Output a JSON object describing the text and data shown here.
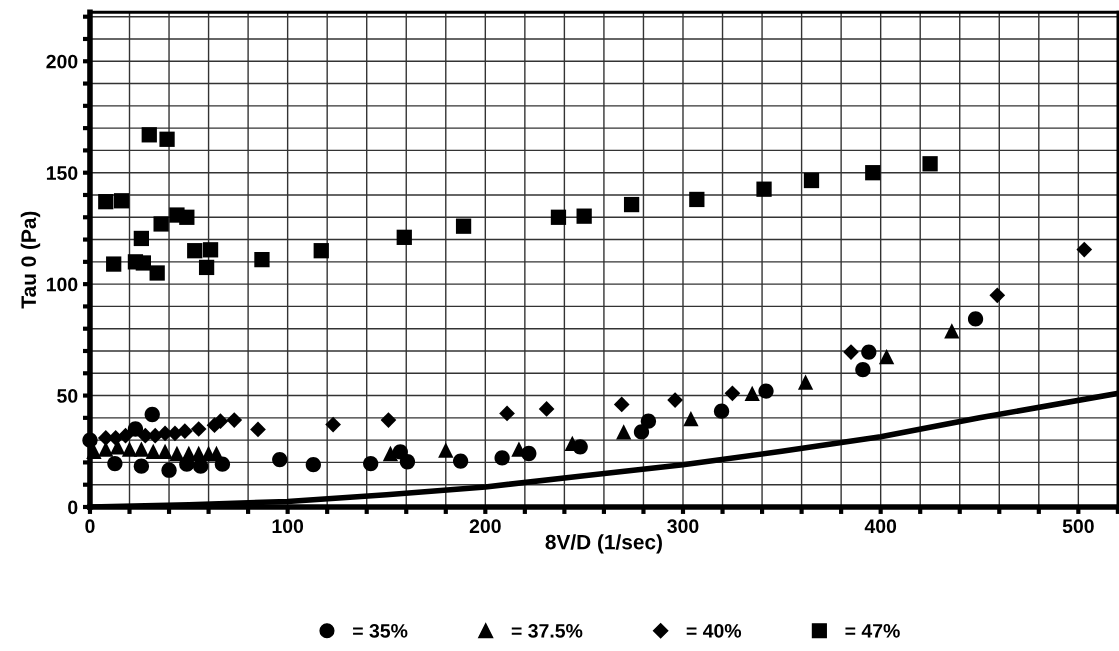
{
  "chart_data": {
    "type": "scatter",
    "xlabel": "8V/D (1/sec)",
    "ylabel": "Tau 0 (Pa)",
    "xlim": [
      0,
      520
    ],
    "ylim": [
      0,
      222
    ],
    "xticks": [
      0,
      {
        "value": 20,
        "label": null
      },
      {
        "value": 40,
        "label": null
      },
      {
        "value": 60,
        "label": null
      },
      {
        "value": 80,
        "label": null
      },
      100,
      {
        "value": 120,
        "label": null
      },
      {
        "value": 140,
        "label": null
      },
      {
        "value": 160,
        "label": null
      },
      {
        "value": 180,
        "label": null
      },
      200,
      {
        "value": 220,
        "label": null
      },
      {
        "value": 240,
        "label": null
      },
      {
        "value": 260,
        "label": null
      },
      {
        "value": 280,
        "label": null
      },
      300,
      {
        "value": 320,
        "label": null
      },
      {
        "value": 340,
        "label": null
      },
      {
        "value": 360,
        "label": null
      },
      {
        "value": 380,
        "label": null
      },
      400,
      {
        "value": 420,
        "label": null
      },
      {
        "value": 440,
        "label": null
      },
      {
        "value": 460,
        "label": null
      },
      {
        "value": 480,
        "label": null
      },
      500,
      {
        "value": 520,
        "label": null
      }
    ],
    "yticks": [
      0,
      {
        "value": 10,
        "label": null
      },
      {
        "value": 20,
        "label": null
      },
      {
        "value": 30,
        "label": null
      },
      {
        "value": 40,
        "label": null
      },
      50,
      {
        "value": 60,
        "label": null
      },
      {
        "value": 70,
        "label": null
      },
      {
        "value": 80,
        "label": null
      },
      {
        "value": 90,
        "label": null
      },
      100,
      {
        "value": 110,
        "label": null
      },
      {
        "value": 120,
        "label": null
      },
      {
        "value": 130,
        "label": null
      },
      {
        "value": 140,
        "label": null
      },
      150,
      {
        "value": 160,
        "label": null
      },
      {
        "value": 170,
        "label": null
      },
      {
        "value": 180,
        "label": null
      },
      {
        "value": 190,
        "label": null
      },
      200,
      {
        "value": 210,
        "label": null
      },
      {
        "value": 220,
        "label": null
      }
    ],
    "grid": true,
    "legend": "bottom",
    "series": [
      {
        "name": "= 35%",
        "color": "#000000",
        "marker": "circle",
        "x": [
          0,
          12.6,
          23,
          26,
          31.5,
          40,
          49,
          56,
          67,
          96,
          113,
          142,
          157,
          160.6,
          187.5,
          208.5,
          222,
          248,
          279,
          282.5,
          319.5,
          342,
          391,
          394,
          448
        ],
        "values": [
          30,
          19.5,
          35,
          18.3,
          41.5,
          16.5,
          19.2,
          18.3,
          19.2,
          21.3,
          19,
          19.5,
          24.7,
          20.3,
          20.6,
          22,
          24,
          27,
          33.7,
          38.5,
          43,
          52,
          61.6,
          69.5,
          84.4
        ]
      },
      {
        "name": "= 37.5%",
        "color": "#000000",
        "marker": "triangle",
        "x": [
          2,
          8,
          14,
          20,
          26,
          32,
          38,
          44,
          50,
          55,
          60,
          64,
          152,
          180,
          217,
          244,
          270,
          304,
          335,
          362,
          403,
          436
        ],
        "values": [
          25,
          26,
          27,
          26,
          26,
          25,
          25,
          24,
          24,
          24,
          24,
          24,
          24,
          25.5,
          26,
          28.5,
          33.7,
          39.7,
          51,
          56,
          67.5,
          79
        ]
      },
      {
        "name": "= 40%",
        "color": "#000000",
        "marker": "diamond",
        "x": [
          8,
          13,
          18,
          28,
          33,
          38,
          43,
          48,
          55,
          63,
          66,
          73,
          85,
          123,
          151,
          211,
          231,
          269,
          296,
          325,
          385,
          459,
          503
        ],
        "values": [
          31,
          31,
          32,
          32,
          32,
          33,
          33,
          34,
          35,
          36.7,
          38.5,
          39,
          34.8,
          37,
          39,
          42,
          44,
          46,
          48,
          51,
          69.5,
          95,
          115.5
        ]
      },
      {
        "name": "= 47%",
        "color": "#000000",
        "marker": "square",
        "x": [
          8,
          12,
          16,
          23,
          26,
          27,
          30,
          34,
          36,
          39,
          44,
          49,
          53,
          59,
          61,
          87,
          117,
          159,
          189,
          237,
          250,
          274,
          307,
          341,
          365,
          396,
          425
        ],
        "values": [
          137,
          109,
          137.4,
          110,
          120.5,
          109.5,
          167,
          105,
          127,
          165,
          131,
          130,
          115,
          107.5,
          115.4,
          111,
          115,
          121,
          126,
          130,
          130.5,
          135.7,
          138,
          142.6,
          146.5,
          150,
          154
        ]
      },
      {
        "type": "line",
        "color": "#000000",
        "marker": "none",
        "x": [
          0,
          50,
          100,
          150,
          200,
          250,
          300,
          350,
          400,
          450,
          520
        ],
        "values": [
          0,
          1,
          2.5,
          5.5,
          9,
          14,
          19,
          25,
          31.5,
          40,
          51
        ]
      }
    ]
  }
}
